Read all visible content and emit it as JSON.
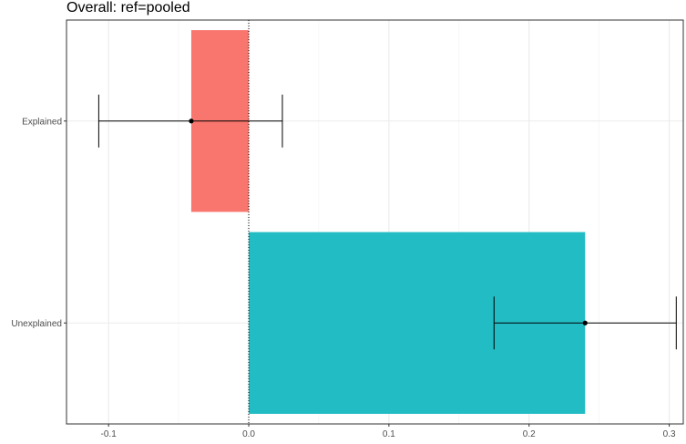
{
  "chart_data": {
    "type": "bar",
    "orientation": "horizontal",
    "title": "Overall: ref=pooled",
    "xlabel": "",
    "ylabel": "",
    "categories": [
      "Explained",
      "Unexplained"
    ],
    "values": [
      -0.041,
      0.24
    ],
    "error_low": [
      -0.107,
      0.175
    ],
    "error_high": [
      0.024,
      0.305
    ],
    "colors": [
      "#F8766D",
      "#22BDC4"
    ],
    "xlim": [
      -0.13,
      0.31
    ],
    "x_ticks": [
      -0.1,
      0.0,
      0.1,
      0.2,
      0.3
    ],
    "x_tick_labels": [
      "-0.1",
      "0.0",
      "0.1",
      "0.2",
      "0.3"
    ],
    "reference_line": 0,
    "reference_line_style": "dotted",
    "grid": true,
    "legend": "none"
  }
}
